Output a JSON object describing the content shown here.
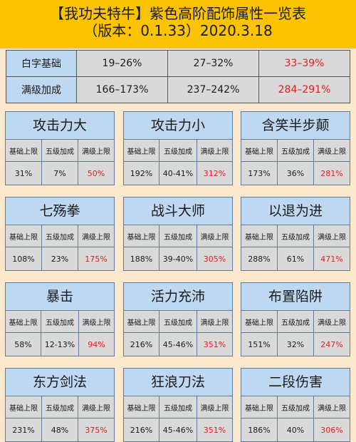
{
  "title": {
    "line1": "【我功夫特牛】紫色高阶配饰属性一览表",
    "line2": "（版本：0.1.33）2020.3.18"
  },
  "summary": [
    {
      "label": "白字基础",
      "values": [
        "19–26%",
        "27–32%",
        "33–39%"
      ]
    },
    {
      "label": "满级加成",
      "values": [
        "166–173%",
        "237–242%",
        "284–291%"
      ]
    }
  ],
  "column_headers": [
    "基础上限",
    "五级加成",
    "满级上限"
  ],
  "cards": [
    {
      "name": "攻击力大",
      "values": [
        "31%",
        "7%",
        "50%"
      ]
    },
    {
      "name": "攻击力小",
      "values": [
        "192%",
        "40-41%",
        "312%"
      ]
    },
    {
      "name": "含笑半步颠",
      "values": [
        "173%",
        "36%",
        "281%"
      ]
    },
    {
      "name": "七殇拳",
      "values": [
        "108%",
        "23%",
        "175%"
      ]
    },
    {
      "name": "战斗大师",
      "values": [
        "188%",
        "39-40%",
        "305%"
      ]
    },
    {
      "name": "以退为进",
      "values": [
        "288%",
        "61%",
        "471%"
      ]
    },
    {
      "name": "暴击",
      "values": [
        "58%",
        "12-13%",
        "94%"
      ]
    },
    {
      "name": "活力充沛",
      "values": [
        "216%",
        "45-46%",
        "351%"
      ]
    },
    {
      "name": "布置陷阱",
      "values": [
        "151%",
        "32%",
        "247%"
      ]
    },
    {
      "name": "东方剑法",
      "values": [
        "231%",
        "48%",
        "375%"
      ]
    },
    {
      "name": "狂浪刀法",
      "values": [
        "216%",
        "45-46%",
        "351%"
      ]
    },
    {
      "name": "二段伤害",
      "values": [
        "186%",
        "40%",
        "306%"
      ]
    }
  ],
  "colors": {
    "title_bg": "#fcc400",
    "page_bg": "#fce9cd",
    "header_bg": "#bfd8f2",
    "cell_bg": "#d9d9d9",
    "highlight_red": "#e02020"
  }
}
